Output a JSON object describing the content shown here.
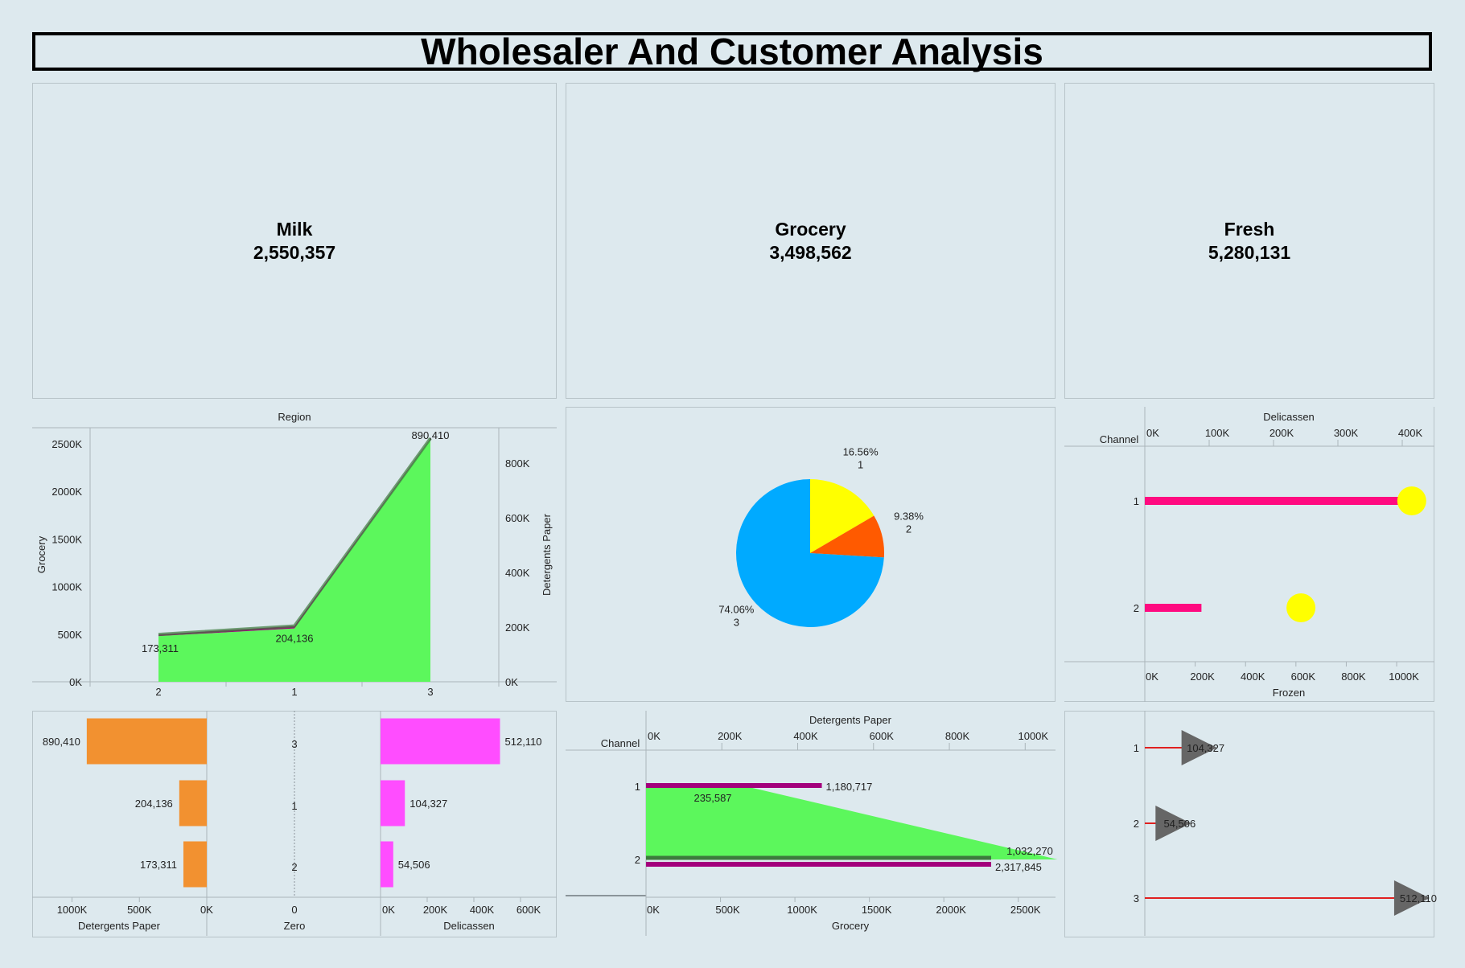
{
  "dashboard": {
    "title": "Wholesaler And Customer Analysis"
  },
  "kpis": [
    {
      "label": "Milk",
      "value": "2,550,357"
    },
    {
      "label": "Grocery",
      "value": "3,498,562"
    },
    {
      "label": "Fresh",
      "value": "5,280,131"
    }
  ],
  "chart_data": [
    {
      "type": "area",
      "title": "Region",
      "categories": [
        "2",
        "1",
        "3"
      ],
      "ylabel": "Grocery",
      "ylabel_right": "Detergents Paper",
      "ylim": [
        0,
        2600000
      ],
      "ylim_right": [
        0,
        900000
      ],
      "yticks": [
        "0K",
        "500K",
        "1000K",
        "1500K",
        "2000K",
        "2500K"
      ],
      "yticks_right": [
        "0K",
        "200K",
        "400K",
        "600K",
        "800K"
      ],
      "colors": {
        "grocery": "#5cf75c",
        "detergents": "#a3007c"
      },
      "series": [
        {
          "name": "Grocery",
          "values": [
            480000,
            560000,
            2550000
          ]
        },
        {
          "name": "Detergents Paper",
          "values": [
            173311,
            204136,
            890410
          ],
          "labels": [
            "173,311",
            "204,136",
            "890,410"
          ]
        }
      ]
    },
    {
      "type": "pie",
      "colors": [
        "#ffff00",
        "#ff5a00",
        "#00aaff"
      ],
      "slices": [
        {
          "category": "1",
          "percent": 16.56,
          "label": "16.56%"
        },
        {
          "category": "2",
          "percent": 9.38,
          "label": "9.38%"
        },
        {
          "category": "3",
          "percent": 74.06,
          "label": "74.06%"
        }
      ]
    },
    {
      "type": "bar",
      "ylabel": "Channel",
      "categories": [
        "1",
        "2"
      ],
      "xlabel_top": "Delicassen",
      "xticks_top": [
        "0K",
        "100K",
        "200K",
        "300K",
        "400K"
      ],
      "xlim_top": [
        0,
        450000
      ],
      "xlabel": "Frozen",
      "xticks": [
        "0K",
        "200K",
        "400K",
        "600K",
        "800K",
        "1000K"
      ],
      "xlim": [
        0,
        1150000
      ],
      "colors": {
        "bar": "#ff0a80",
        "dot": "#ffff00"
      },
      "series": [
        {
          "name": "Delicassen",
          "values": [
            421955,
            88000
          ]
        },
        {
          "name": "Frozen",
          "values": [
            1060000,
            620000
          ]
        }
      ]
    },
    {
      "type": "bar",
      "categories": [
        "3",
        "1",
        "2"
      ],
      "xlabel_left": "Detergents Paper",
      "xlabel_mid": "Zero",
      "xlabel_right": "Delicassen",
      "xticks_left": [
        "1000K",
        "500K",
        "0K"
      ],
      "xticks_mid": [
        "0"
      ],
      "xticks_right": [
        "0K",
        "200K",
        "400K",
        "600K"
      ],
      "colors": {
        "left": "#f29130",
        "right": "#ff4dff"
      },
      "series": [
        {
          "name": "Detergents Paper",
          "values": [
            890410,
            204136,
            173311
          ],
          "labels": [
            "890,410",
            "204,136",
            "173,311"
          ]
        },
        {
          "name": "Delicassen",
          "values": [
            512110,
            104327,
            54506
          ],
          "labels": [
            "512,110",
            "104,327",
            "54,506"
          ]
        }
      ]
    },
    {
      "type": "bar",
      "ylabel": "Channel",
      "categories": [
        "1",
        "2"
      ],
      "xlabel_top": "Detergents Paper",
      "xticks_top": [
        "0K",
        "200K",
        "400K",
        "600K",
        "800K",
        "1000K"
      ],
      "xlim_top": [
        0,
        1080000
      ],
      "xlabel": "Grocery",
      "xticks": [
        "0K",
        "500K",
        "1000K",
        "1500K",
        "2000K",
        "2500K"
      ],
      "xlim": [
        0,
        2750000
      ],
      "colors": {
        "area": "#5cf75c",
        "bar": "#a3007c"
      },
      "series": [
        {
          "name": "Detergents Paper",
          "values": [
            235587,
            1032270
          ],
          "labels": [
            "235,587",
            "1,032,270"
          ]
        },
        {
          "name": "Grocery",
          "values": [
            1180717,
            2317845
          ],
          "labels": [
            "1,180,717",
            "2,317,845"
          ]
        }
      ]
    },
    {
      "type": "scatter",
      "categories": [
        "1",
        "2",
        "3"
      ],
      "xlim": [
        0,
        540000
      ],
      "colors": {
        "line": "#e02020",
        "marker": "#666666"
      },
      "series": [
        {
          "name": "Delicassen",
          "values": [
            104327,
            54506,
            512110
          ],
          "labels": [
            "104,327",
            "54,506",
            "512,110"
          ]
        }
      ]
    }
  ]
}
